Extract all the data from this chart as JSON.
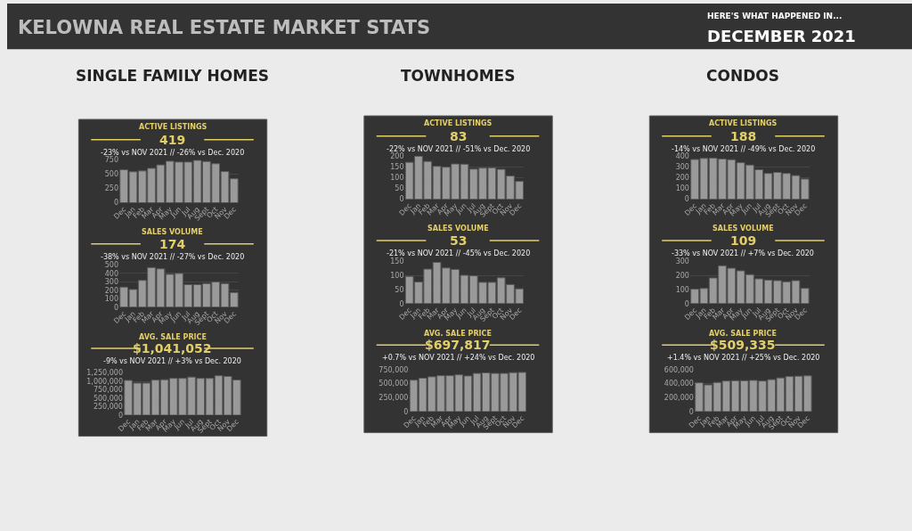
{
  "chart_data": [
    {
      "type": "bar",
      "title": "ACTIVE LISTINGS",
      "subtitle": "419",
      "annotations": [
        "-23% vs NOV 2021 // -26% vs Dec. 2020",
        "KELOWNA REAL ESTATE MARKET STATS",
        "HERE'S WHAT HAPPENED IN...",
        "DECEMBER 2021",
        "SINGLE FAMILY HOMES"
      ],
      "categories": [
        "Dec",
        "Jan",
        "Feb",
        "Mar",
        "Apr",
        "May",
        "Jun",
        "Jul",
        "Aug",
        "Sept",
        "Oct",
        "Nov",
        "Dec"
      ],
      "values": [
        575,
        540,
        555,
        600,
        660,
        725,
        710,
        710,
        740,
        720,
        680,
        545,
        419
      ],
      "color": "#9a9a9a",
      "ylim": [
        0,
        750
      ],
      "yticks": [
        0,
        250,
        500,
        750
      ],
      "grid": "y"
    },
    {
      "type": "bar",
      "title": "SALES VOLUME",
      "subtitle": "174",
      "annotations": [
        "-38% vs NOV 2021 // -27% vs Dec. 2020"
      ],
      "categories": [
        "Dec",
        "Jan",
        "Feb",
        "Mar",
        "Apr",
        "May",
        "Jun",
        "Jul",
        "Aug",
        "Sept",
        "Oct",
        "Nov",
        "Dec"
      ],
      "values": [
        238,
        210,
        318,
        470,
        455,
        390,
        400,
        268,
        268,
        280,
        300,
        280,
        174
      ],
      "color": "#9a9a9a",
      "ylim": [
        0,
        500
      ],
      "yticks": [
        0,
        100,
        200,
        300,
        400,
        500
      ],
      "grid": "y"
    },
    {
      "type": "bar",
      "title": "AVG. SALE PRICE",
      "subtitle": "$1,041,052",
      "annotations": [
        "-9% vs NOV 2021 // +3% vs Dec. 2020"
      ],
      "categories": [
        "Dec",
        "Jan",
        "Feb",
        "Mar",
        "Apr",
        "May",
        "Jun",
        "Jul",
        "Aug",
        "Sept",
        "Oct",
        "Nov",
        "Dec"
      ],
      "values": [
        1030000,
        950000,
        950000,
        1040000,
        1050000,
        1090000,
        1090000,
        1130000,
        1090000,
        1090000,
        1170000,
        1150000,
        1041052
      ],
      "color": "#9a9a9a",
      "ylim": [
        0,
        1250000
      ],
      "yticks": [
        0,
        {
          "value": 250000,
          "label": "250,000"
        },
        {
          "value": 500000,
          "label": "500,000"
        },
        {
          "value": 750000,
          "label": "750,000"
        },
        {
          "value": 1000000,
          "label": "1,000,000"
        },
        {
          "value": 1250000,
          "label": "1,250,000"
        }
      ],
      "grid": "y"
    },
    {
      "type": "bar",
      "title": "ACTIVE LISTINGS",
      "subtitle": "83",
      "annotations": [
        "-22% vs NOV 2021 // -51% vs Dec. 2020",
        "TOWNHOMES"
      ],
      "categories": [
        "Dec",
        "Jan",
        "Feb",
        "Mar",
        "Apr",
        "May",
        "Jun",
        "Jul",
        "Aug",
        "Sept",
        "Oct",
        "Nov",
        "Dec"
      ],
      "values": [
        172,
        200,
        176,
        153,
        149,
        164,
        163,
        140,
        145,
        146,
        139,
        108,
        83
      ],
      "color": "#9a9a9a",
      "ylim": [
        0,
        200
      ],
      "yticks": [
        0,
        50,
        100,
        150,
        200
      ],
      "grid": "y"
    },
    {
      "type": "bar",
      "title": "SALES VOLUME",
      "subtitle": "53",
      "annotations": [
        "-21% vs NOV 2021 // -45% vs Dec. 2020"
      ],
      "categories": [
        "Dec",
        "Jan",
        "Feb",
        "Mar",
        "Apr",
        "May",
        "Jun",
        "Jul",
        "Aug",
        "Sept",
        "Oct",
        "Nov",
        "Dec"
      ],
      "values": [
        97,
        77,
        123,
        147,
        127,
        122,
        101,
        99,
        76,
        76,
        92,
        68,
        53
      ],
      "color": "#9a9a9a",
      "ylim": [
        0,
        150
      ],
      "yticks": [
        0,
        50,
        100,
        150
      ],
      "grid": "y"
    },
    {
      "type": "bar",
      "title": "AVG. SALE PRICE",
      "subtitle": "$697,817",
      "annotations": [
        "+0.7% vs NOV 2021 // +24% vs Dec. 2020"
      ],
      "categories": [
        "Dec",
        "Jan",
        "Feb",
        "Mar",
        "Apr",
        "May",
        "Jun",
        "Jul",
        "Aug",
        "Sept",
        "Oct",
        "Nov",
        "Dec"
      ],
      "values": [
        560000,
        595000,
        620000,
        640000,
        640000,
        655000,
        635000,
        680000,
        690000,
        680000,
        680000,
        695000,
        697817
      ],
      "color": "#9a9a9a",
      "ylim": [
        0,
        750000
      ],
      "yticks": [
        0,
        {
          "value": 250000,
          "label": "250,000"
        },
        {
          "value": 500000,
          "label": "500,000"
        },
        {
          "value": 750000,
          "label": "750,000"
        }
      ],
      "grid": "y"
    },
    {
      "type": "bar",
      "title": "ACTIVE LISTINGS",
      "subtitle": "188",
      "annotations": [
        "-14% vs NOV 2021 // -49% vs Dec. 2020",
        "CONDOS"
      ],
      "categories": [
        "Dec",
        "Jan",
        "Feb",
        "Mar",
        "Apr",
        "May",
        "Jun",
        "Jul",
        "Aug",
        "Sept",
        "Oct",
        "Nov",
        "Dec"
      ],
      "values": [
        370,
        380,
        383,
        375,
        368,
        340,
        318,
        275,
        240,
        250,
        240,
        220,
        188
      ],
      "color": "#9a9a9a",
      "ylim": [
        0,
        400
      ],
      "yticks": [
        0,
        100,
        200,
        300,
        400
      ],
      "grid": "y"
    },
    {
      "type": "bar",
      "title": "SALES VOLUME",
      "subtitle": "109",
      "annotations": [
        "-33% vs NOV 2021 // +7% vs Dec. 2020"
      ],
      "categories": [
        "Dec",
        "Jan",
        "Feb",
        "Mar",
        "Apr",
        "May",
        "Jun",
        "Jul",
        "Aug",
        "Sept",
        "Oct",
        "Nov",
        "Dec"
      ],
      "values": [
        103,
        108,
        183,
        270,
        252,
        234,
        207,
        177,
        168,
        164,
        156,
        164,
        109
      ],
      "color": "#9a9a9a",
      "ylim": [
        0,
        300
      ],
      "yticks": [
        0,
        100,
        200,
        300
      ],
      "grid": "y"
    },
    {
      "type": "bar",
      "title": "AVG. SALE PRICE",
      "subtitle": "$509,335",
      "annotations": [
        "+1.4% vs NOV 2021 // +25% vs Dec. 2020"
      ],
      "categories": [
        "Dec",
        "Jan",
        "Feb",
        "Mar",
        "Apr",
        "May",
        "Jun",
        "Jul",
        "Aug",
        "Sept",
        "Oct",
        "Nov",
        "Dec"
      ],
      "values": [
        410000,
        380000,
        415000,
        435000,
        440000,
        440000,
        445000,
        435000,
        455000,
        480000,
        500000,
        505000,
        509335
      ],
      "color": "#9a9a9a",
      "ylim": [
        0,
        600000
      ],
      "yticks": [
        0,
        {
          "value": 200000,
          "label": "200,000"
        },
        {
          "value": 400000,
          "label": "400,000"
        },
        {
          "value": 600000,
          "label": "600,000"
        }
      ],
      "grid": "y"
    }
  ]
}
